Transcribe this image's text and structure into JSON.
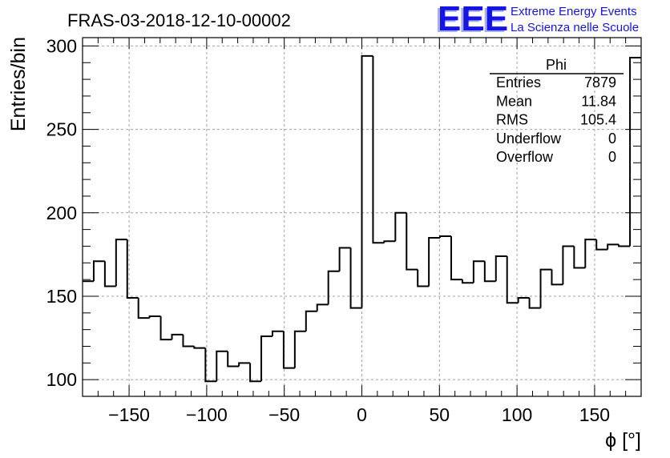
{
  "chart_data": {
    "type": "bar",
    "style": "step-histogram",
    "title": "FRAS-03-2018-12-10-00002",
    "xlabel": "ϕ [°]",
    "ylabel": "Entries/bin",
    "xlim": [
      -180,
      180
    ],
    "ylim": [
      90,
      305
    ],
    "grid": true,
    "bin_width": 7.2,
    "x_ticks": [
      -150,
      -100,
      -50,
      0,
      50,
      100,
      150
    ],
    "x_tick_labels": [
      "−150",
      "−100",
      "−50",
      "0",
      "50",
      "100",
      "150"
    ],
    "y_ticks": [
      100,
      150,
      200,
      250,
      300
    ],
    "y_tick_labels": [
      "100",
      "150",
      "200",
      "250",
      "300"
    ],
    "bin_edges_start": -180,
    "values": [
      159,
      171,
      156,
      184,
      149,
      137,
      138,
      124,
      127,
      120,
      119,
      99,
      117,
      108,
      110,
      99,
      126,
      129,
      107,
      129,
      141,
      145,
      165,
      179,
      143,
      294,
      182,
      183,
      200,
      166,
      156,
      185,
      186,
      160,
      158,
      171,
      159,
      174,
      146,
      149,
      143,
      166,
      157,
      180,
      167,
      184,
      178,
      181,
      180,
      293
    ],
    "stats_box": {
      "name": "Phi",
      "rows": [
        {
          "label": "Entries",
          "value": "7879"
        },
        {
          "label": "Mean",
          "value": "11.84"
        },
        {
          "label": "RMS",
          "value": "105.4"
        },
        {
          "label": "Underflow",
          "value": "0"
        },
        {
          "label": "Overflow",
          "value": "0"
        }
      ]
    }
  },
  "logo": {
    "mark": "EEE",
    "line1": "Extreme Energy Events",
    "line2": "La Scienza nelle Scuole",
    "color": "#1414e6"
  },
  "colors": {
    "line": "#000000",
    "grid": "#a0a0a0"
  }
}
